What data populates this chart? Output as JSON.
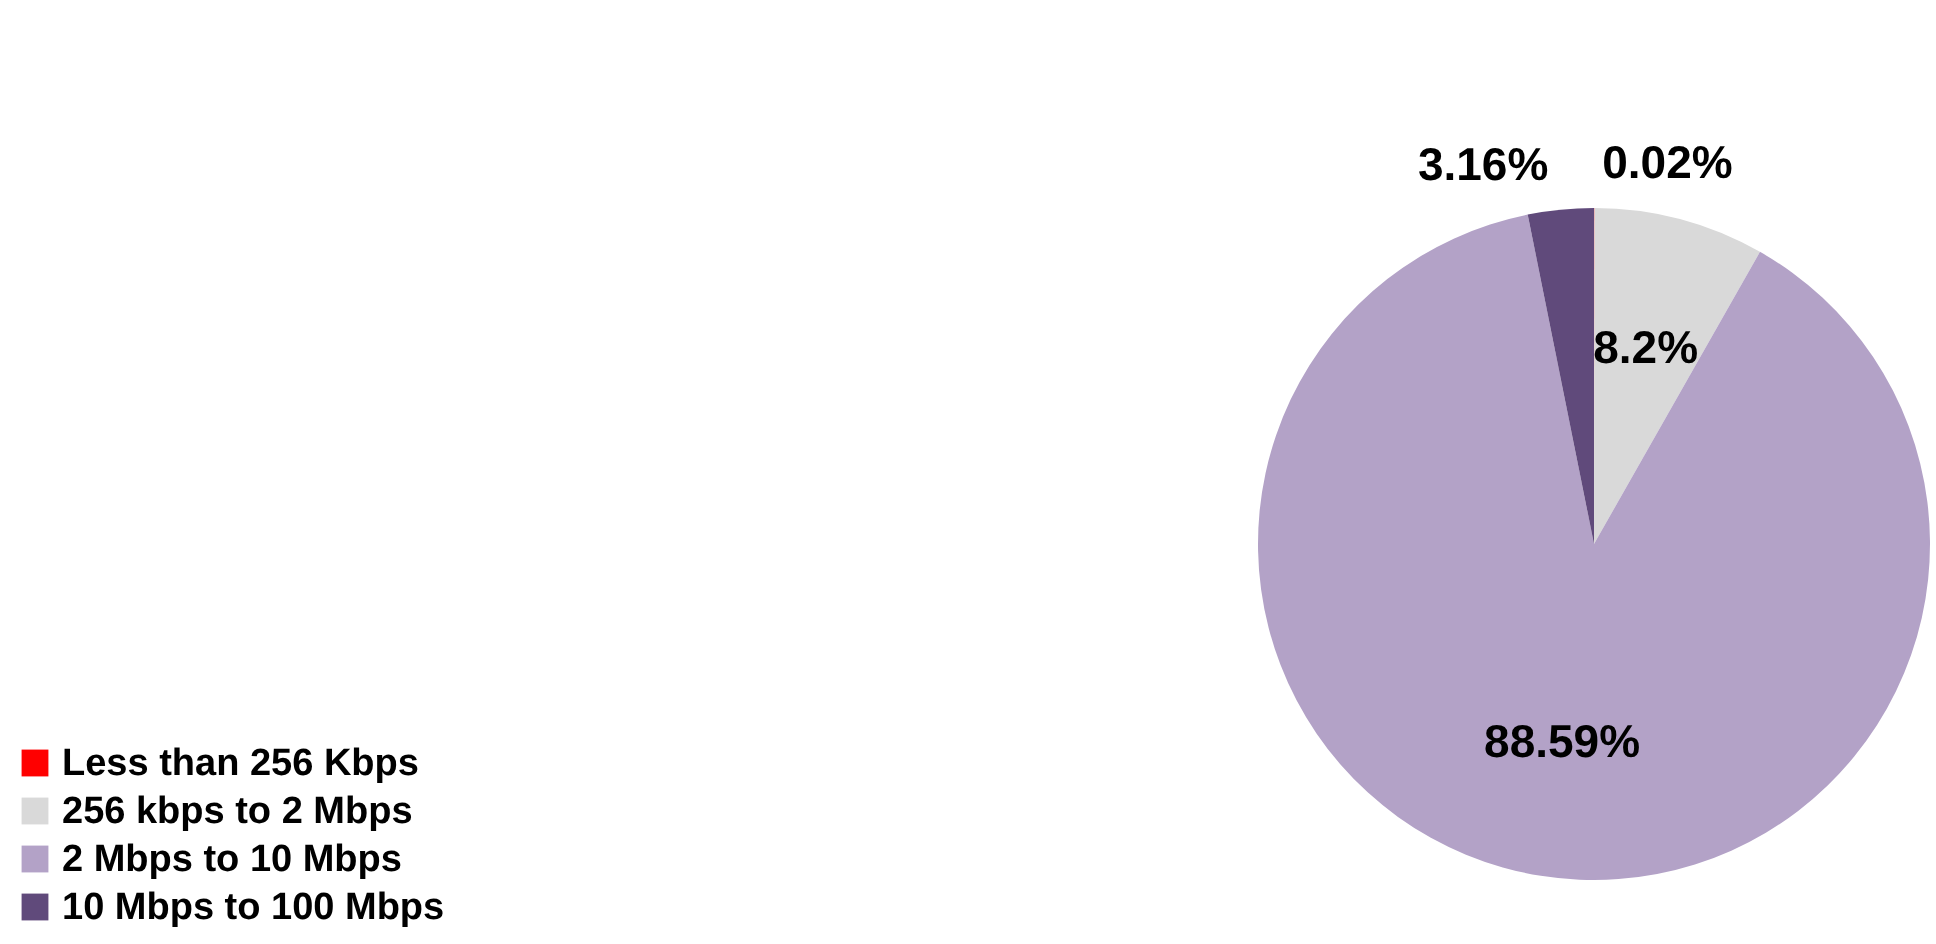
{
  "chart_data": {
    "type": "pie",
    "categories": [
      "Less than 256 Kbps",
      "256 kbps to 2 Mbps",
      "2 Mbps to 10 Mbps",
      "10 Mbps to 100 Mbps"
    ],
    "values": [
      0.02,
      8.2,
      88.59,
      3.16
    ],
    "colors": [
      "#ff0000",
      "#d9d9d9",
      "#b3a2c7",
      "#604a7b"
    ],
    "value_labels": [
      "0.02%",
      "8.2%",
      "88.59%",
      "3.16%"
    ],
    "legend": "bottom left"
  }
}
